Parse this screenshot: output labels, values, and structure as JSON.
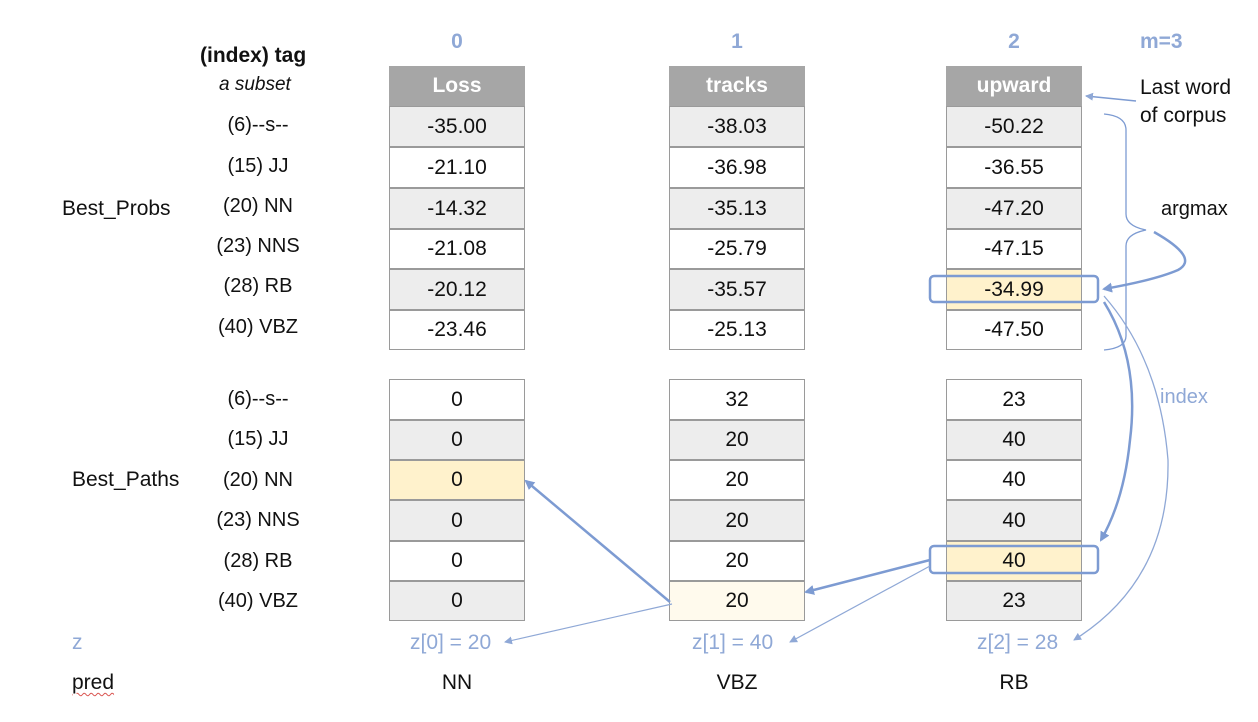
{
  "header": {
    "index_tag": "(index) tag",
    "subset": "a subset",
    "m": "m=3"
  },
  "columns": [
    {
      "index": "0",
      "word": "Loss"
    },
    {
      "index": "1",
      "word": "tracks"
    },
    {
      "index": "2",
      "word": "upward"
    }
  ],
  "tags": [
    "(6)--s--",
    "(15) JJ",
    "(20) NN",
    "(23) NNS",
    "(28) RB",
    "(40) VBZ"
  ],
  "best_probs": {
    "label": "Best_Probs",
    "values": [
      [
        "-35.00",
        "-38.03",
        "-50.22"
      ],
      [
        "-21.10",
        "-36.98",
        "-36.55"
      ],
      [
        "-14.32",
        "-35.13",
        "-47.20"
      ],
      [
        "-21.08",
        "-25.79",
        "-47.15"
      ],
      [
        "-20.12",
        "-35.57",
        "-34.99"
      ],
      [
        "-23.46",
        "-25.13",
        "-47.50"
      ]
    ]
  },
  "best_paths": {
    "label": "Best_Paths",
    "values": [
      [
        "0",
        "32",
        "23"
      ],
      [
        "0",
        "20",
        "40"
      ],
      [
        "0",
        "20",
        "40"
      ],
      [
        "0",
        "20",
        "40"
      ],
      [
        "0",
        "20",
        "40"
      ],
      [
        "0",
        "20",
        "23"
      ]
    ]
  },
  "annotations": {
    "last_word_line1": "Last word",
    "last_word_line2": "of corpus",
    "argmax": "argmax",
    "index": "index"
  },
  "z": {
    "label": "z",
    "values": [
      "z[0] = 20",
      "z[1] = 40",
      "z[2] = 28"
    ]
  },
  "pred": {
    "label": "pred",
    "values": [
      "NN",
      "VBZ",
      "RB"
    ]
  },
  "colors": {
    "accent": "#8fa8d6",
    "header": "#a6a6a6",
    "highlight": "#fff2cc",
    "grey_cell": "#ededed"
  }
}
